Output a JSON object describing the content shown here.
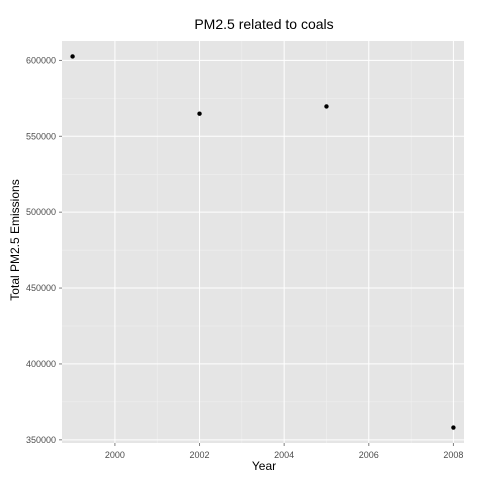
{
  "chart_data": {
    "type": "scatter",
    "title": "PM2.5 related to coals",
    "xlabel": "Year",
    "ylabel": "Total PM2.5 Emissions",
    "x": [
      1999,
      2002,
      2005,
      2008
    ],
    "y": [
      602600,
      564900,
      569700,
      358100
    ],
    "xlim": [
      1998.75,
      2008.25
    ],
    "ylim": [
      347900,
      612800
    ],
    "x_ticks": [
      2000,
      2002,
      2004,
      2006,
      2008
    ],
    "x_tick_labels": [
      "2000",
      "2002",
      "2004",
      "2006",
      "2008"
    ],
    "y_ticks": [
      350000,
      400000,
      450000,
      500000,
      550000,
      600000
    ],
    "y_tick_labels": [
      "350000",
      "400000",
      "450000",
      "500000",
      "550000",
      "600000"
    ],
    "grid": true,
    "colors": {
      "panel": "#e5e5e5",
      "grid_major": "#ffffff",
      "grid_minor": "#f2f2f2",
      "point": "#000000"
    }
  }
}
